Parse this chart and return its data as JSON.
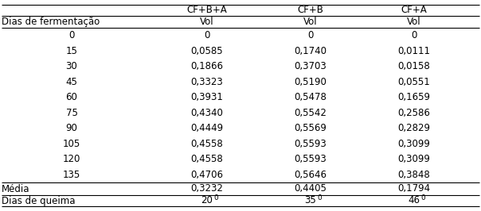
{
  "col_headers": [
    "CF+B+A",
    "CF+B",
    "CF+A"
  ],
  "sub_headers": [
    "Vol",
    "Vol",
    "Vol"
  ],
  "row_label_col1": "Dias de fermentação",
  "row_labels": [
    "0",
    "15",
    "30",
    "45",
    "60",
    "75",
    "90",
    "105",
    "120",
    "135"
  ],
  "data": [
    [
      "0",
      "0",
      "0"
    ],
    [
      "0,0585",
      "0,1740",
      "0,0111"
    ],
    [
      "0,1866",
      "0,3703",
      "0,0158"
    ],
    [
      "0,3323",
      "0,5190",
      "0,0551"
    ],
    [
      "0,3931",
      "0,5478",
      "0,1659"
    ],
    [
      "0,4340",
      "0,5542",
      "0,2586"
    ],
    [
      "0,4449",
      "0,5569",
      "0,2829"
    ],
    [
      "0,4558",
      "0,5593",
      "0,3099"
    ],
    [
      "0,4558",
      "0,5593",
      "0,3099"
    ],
    [
      "0,4706",
      "0,5646",
      "0,3848"
    ]
  ],
  "media_label": "Média",
  "media_values": [
    "0,3232",
    "0,4405",
    "0,1794"
  ],
  "queima_label": "Dias de queima",
  "queima_values": [
    [
      "20",
      "0"
    ],
    [
      "35",
      "0"
    ],
    [
      "46",
      "0"
    ]
  ],
  "bg_color": "#ffffff",
  "text_color": "#000000",
  "font_size": 8.5
}
